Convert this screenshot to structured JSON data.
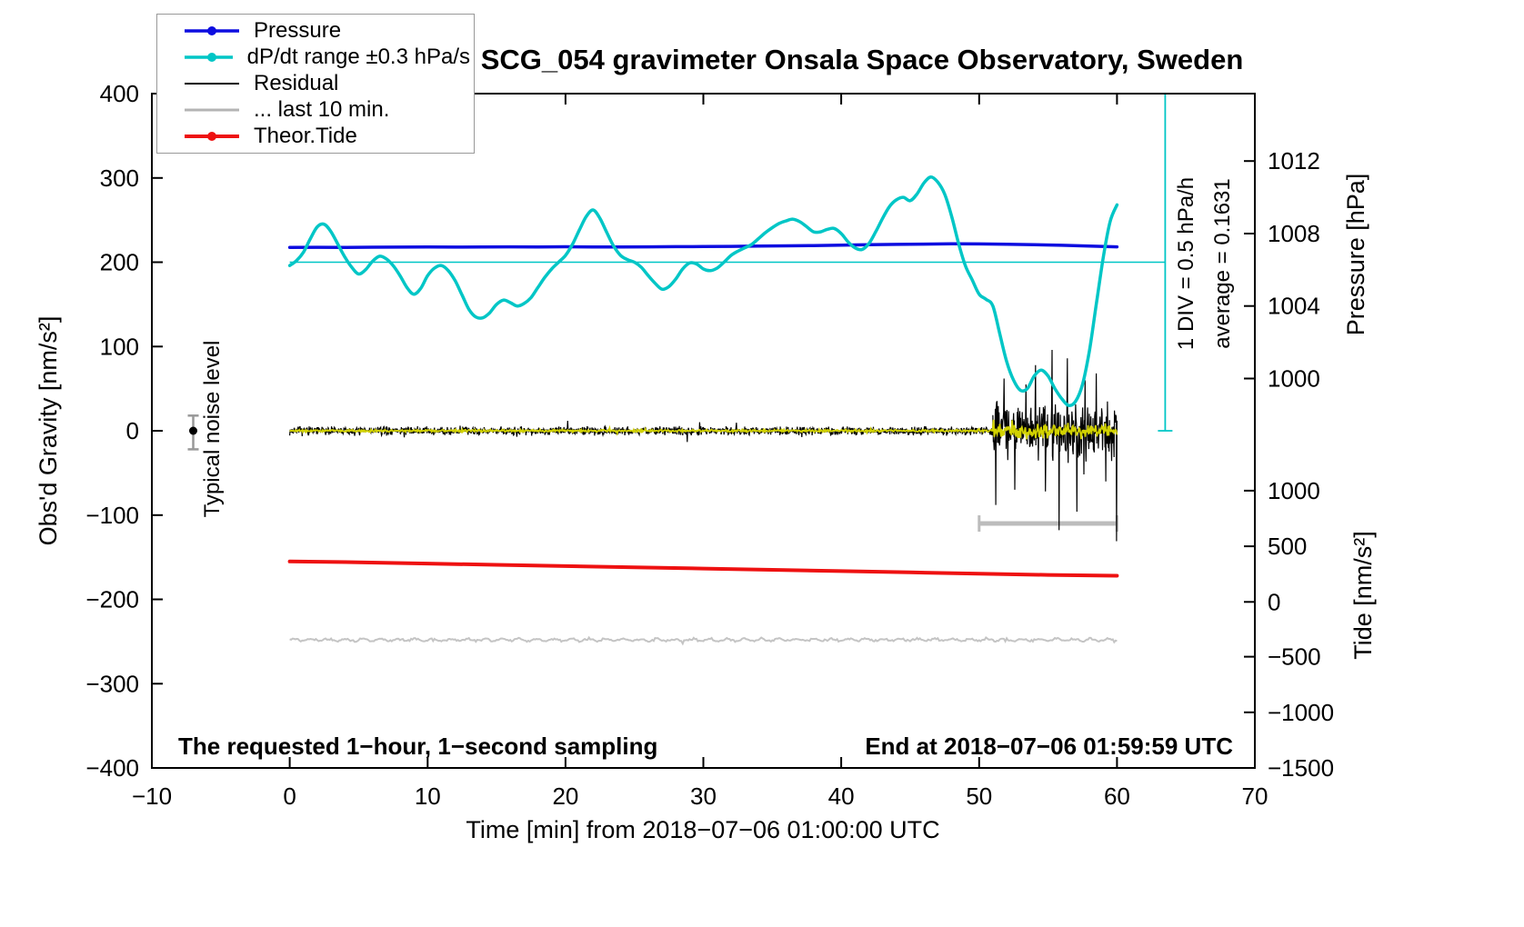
{
  "chart_data": {
    "type": "line",
    "title": "SCG_054 gravimeter Onsala Space Observatory, Sweden",
    "xlabel": "Time [min] from 2018−07−06 01:00:00 UTC",
    "ylabel": "Obs'd Gravity [nm/s²]",
    "ylabel_right_pressure": "Pressure [hPa]",
    "ylabel_right_tide": "Tide [nm/s²]",
    "xlim": [
      -10,
      70
    ],
    "ylim": [
      -400,
      400
    ],
    "x_ticks": {
      "values": [
        -10,
        0,
        10,
        20,
        30,
        40,
        50,
        60,
        70
      ],
      "labels": [
        "−10",
        "0",
        "10",
        "20",
        "30",
        "40",
        "50",
        "60",
        "70"
      ]
    },
    "y_ticks": {
      "values": [
        -400,
        -300,
        -200,
        -100,
        0,
        100,
        200,
        300,
        400
      ],
      "labels": [
        "−400",
        "−300",
        "−200",
        "−100",
        "0",
        "100",
        "200",
        "300",
        "400"
      ]
    },
    "pressure_ticks": {
      "labels": [
        "1012",
        "1008",
        "1004",
        "1000"
      ],
      "positions": [
        320,
        234,
        148,
        62
      ]
    },
    "tide_ticks": {
      "labels": [
        "1000",
        "500",
        "0",
        "−500",
        "−1000",
        "−1500"
      ],
      "positions": [
        -71,
        -137,
        -203,
        -268,
        -334,
        -400
      ]
    },
    "legend": {
      "items": [
        {
          "label": "Pressure",
          "color": "#0d0de0",
          "line_width": 3.5,
          "dot": true
        },
        {
          "label": "dP/dt range ±0.3 hPa/s",
          "color": "#00c6c6",
          "line_width": 3.5,
          "dot": true
        },
        {
          "label": "Residual",
          "color": "#000000",
          "line_width": 2,
          "dot": false
        },
        {
          "label": "... last 10 min.",
          "color": "#b4b4b4",
          "line_width": 3,
          "dot": false
        },
        {
          "label": "Theor.Tide",
          "color": "#ee1111",
          "line_width": 4,
          "dot": true
        }
      ]
    },
    "annotations": {
      "div_scale": "1 DIV = 0.5 hPa/h",
      "average": "average = 0.1631",
      "noise_label": "Typical noise level",
      "sampling_note": "The requested 1−hour, 1−second sampling",
      "end_note": "End at 2018−07−06 01:59:59 UTC"
    },
    "graphics": {
      "ref_line": {
        "y": 200,
        "x0": 0,
        "x1": 63.5,
        "color": "#00c6c6",
        "width": 1.5
      },
      "div_indicator": {
        "x": 63.5,
        "y0": 0,
        "y1": 400,
        "cap_halfwidth": 8,
        "color": "#00c6c6",
        "width": 1.8
      },
      "range_bar": {
        "y": -110,
        "x0": 50,
        "x1": 60,
        "cap_halfheight": 9,
        "color": "#bcbcbc",
        "width": 5
      },
      "noise_marker": {
        "x": -7,
        "y": 0,
        "lo": -22,
        "hi": 18,
        "cap_halfwidth": 6,
        "dot_color": "#000000",
        "bar_color": "#999999"
      }
    },
    "series": [
      {
        "name": "last10min_trace",
        "type": "noise",
        "color": "#c4c4c4",
        "width": 2,
        "baseline": -248,
        "step": 0.1,
        "seed": 5,
        "wave": {
          "amp": 1.3,
          "freq": 5.0
        },
        "segments": [
          {
            "x0": 0,
            "x1": 60,
            "amp": 1.6
          }
        ],
        "spikes": []
      },
      {
        "name": "theor_tide",
        "type": "line",
        "color": "#ee1111",
        "width": 4,
        "smooth": false,
        "x_start": 0,
        "x_step": 5,
        "y": [
          -155,
          -156,
          -157.5,
          -159,
          -160.5,
          -162,
          -163.5,
          -165,
          -166.5,
          -168,
          -169.5,
          -171,
          -172
        ]
      },
      {
        "name": "residual",
        "type": "noise",
        "color": "#000000",
        "width": 1.2,
        "baseline": 0,
        "step": 0.03,
        "seed": 7,
        "segments": [
          {
            "x0": 0,
            "x1": 51,
            "amp": 6
          },
          {
            "x0": 51,
            "x1": 60,
            "amp": 40
          }
        ],
        "spikes": [
          {
            "x": 51.2,
            "y": -88
          },
          {
            "x": 51.8,
            "y": 62
          },
          {
            "x": 52.6,
            "y": -70
          },
          {
            "x": 53.4,
            "y": 55
          },
          {
            "x": 54.1,
            "y": 78
          },
          {
            "x": 54.8,
            "y": -72
          },
          {
            "x": 55.3,
            "y": 96
          },
          {
            "x": 55.8,
            "y": -118
          },
          {
            "x": 56.4,
            "y": 86
          },
          {
            "x": 57.1,
            "y": -96
          },
          {
            "x": 57.7,
            "y": 60
          },
          {
            "x": 58.5,
            "y": 68
          },
          {
            "x": 59.2,
            "y": -60
          },
          {
            "x": 59.97,
            "y": -131
          }
        ]
      },
      {
        "name": "residual_filtered",
        "type": "noise",
        "color": "#d2d200",
        "width": 1.8,
        "baseline": 0,
        "step": 0.05,
        "seed": 21,
        "segments": [
          {
            "x0": 0,
            "x1": 51,
            "amp": 1.6
          },
          {
            "x0": 51,
            "x1": 60,
            "amp": 11
          }
        ],
        "spikes": []
      },
      {
        "name": "pressure",
        "type": "line",
        "color": "#0d0de0",
        "width": 3.5,
        "smooth": false,
        "x_start": 0,
        "x_step": 2,
        "y": [
          217.6,
          217.7,
          217.5,
          217.8,
          217.9,
          218.1,
          217.9,
          218.0,
          218.2,
          218.0,
          218.3,
          218.1,
          218.0,
          218.2,
          218.4,
          218.5,
          218.8,
          219.1,
          219.4,
          219.7,
          220.2,
          220.7,
          221.1,
          221.5,
          221.8,
          221.7,
          221.3,
          220.7,
          220.1,
          219.2,
          218.2
        ]
      },
      {
        "name": "dpdt_range",
        "type": "line",
        "color": "#00c6c6",
        "width": 3.5,
        "smooth": true,
        "x_start": 0,
        "x_step": 0.5,
        "y": [
          196,
          202,
          212,
          228,
          242,
          245,
          236,
          221,
          206,
          194,
          186,
          191,
          201,
          207,
          204,
          196,
          184,
          170,
          162,
          169,
          184,
          193,
          196,
          190,
          178,
          161,
          144,
          135,
          134,
          140,
          150,
          155,
          152,
          148,
          151,
          158,
          170,
          182,
          192,
          200,
          208,
          221,
          238,
          254,
          262,
          252,
          235,
          219,
          208,
          203,
          200,
          194,
          184,
          175,
          168,
          171,
          180,
          192,
          199,
          198,
          192,
          190,
          193,
          200,
          208,
          213,
          217,
          221,
          228,
          235,
          241,
          246,
          249,
          251,
          248,
          242,
          236,
          236,
          239,
          240,
          234,
          224,
          217,
          215,
          222,
          236,
          252,
          266,
          274,
          277,
          273,
          281,
          294,
          301,
          295,
          281,
          255,
          223,
          196,
          179,
          162,
          156,
          148,
          115,
          82,
          60,
          48,
          50,
          65,
          72,
          65,
          50,
          38,
          30,
          35,
          55,
          95,
          150,
          205,
          248,
          268
        ]
      }
    ]
  }
}
